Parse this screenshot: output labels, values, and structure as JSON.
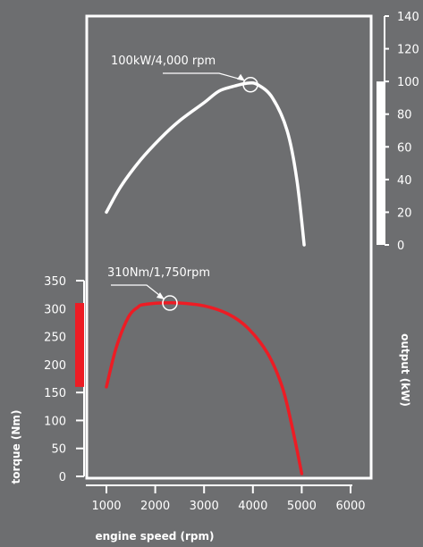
{
  "chart_data": {
    "type": "line",
    "xlabel": "engine speed (rpm)",
    "x_ticks": [
      1000,
      2000,
      3000,
      4000,
      5000,
      6000
    ],
    "xlim": [
      700,
      6000
    ],
    "y_left": {
      "label": "torque (Nm)",
      "ticks": [
        0,
        50,
        100,
        150,
        200,
        250,
        300,
        350
      ],
      "ylim": [
        0,
        350
      ]
    },
    "y_right": {
      "label": "output (kW)",
      "ticks": [
        0,
        20,
        40,
        60,
        80,
        100,
        120,
        140
      ],
      "ylim": [
        0,
        140
      ]
    },
    "left_band": [
      160,
      310
    ],
    "right_band": [
      0,
      100
    ],
    "series": [
      {
        "name": "output",
        "axis": "right",
        "color": "#ffffff",
        "points": [
          [
            1000,
            20
          ],
          [
            1300,
            36
          ],
          [
            1700,
            52
          ],
          [
            2100,
            65
          ],
          [
            2500,
            76
          ],
          [
            3000,
            87
          ],
          [
            3300,
            94
          ],
          [
            3600,
            97
          ],
          [
            3900,
            99
          ],
          [
            4100,
            98
          ],
          [
            4400,
            90
          ],
          [
            4700,
            70
          ],
          [
            4900,
            40
          ],
          [
            5050,
            0
          ]
        ]
      },
      {
        "name": "torque",
        "axis": "left",
        "color": "#ed1c24",
        "points": [
          [
            1000,
            160
          ],
          [
            1200,
            230
          ],
          [
            1450,
            285
          ],
          [
            1650,
            303
          ],
          [
            1750,
            307
          ],
          [
            2100,
            310
          ],
          [
            2500,
            310
          ],
          [
            3000,
            305
          ],
          [
            3500,
            290
          ],
          [
            3900,
            265
          ],
          [
            4300,
            220
          ],
          [
            4600,
            160
          ],
          [
            4800,
            90
          ],
          [
            5000,
            5
          ]
        ]
      }
    ],
    "annotations": [
      {
        "text": "100kW/4,000 rpm",
        "x": 3950,
        "y": 98,
        "axis": "right"
      },
      {
        "text": "310Nm/1,750rpm",
        "x": 2300,
        "y": 310,
        "axis": "left"
      }
    ]
  }
}
